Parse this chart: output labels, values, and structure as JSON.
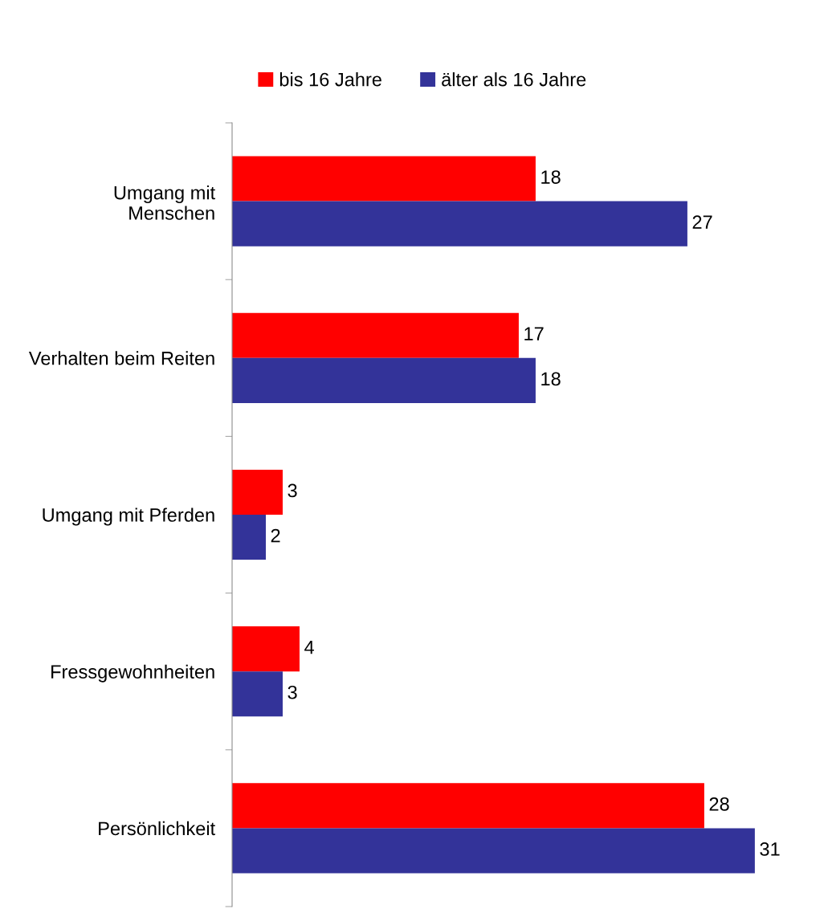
{
  "chart_data": {
    "type": "bar",
    "orientation": "horizontal",
    "categories": [
      "Umgang mit\nMenschen",
      "Verhalten beim Reiten",
      "Umgang mit Pferden",
      "Fressgewohnheiten",
      "Persönlichkeit"
    ],
    "series": [
      {
        "name": "bis 16 Jahre",
        "color": "#ff0000",
        "values": [
          18,
          17,
          3,
          4,
          28
        ]
      },
      {
        "name": "älter als 16 Jahre",
        "color": "#333399",
        "values": [
          27,
          18,
          2,
          3,
          31
        ]
      }
    ],
    "data_labels": true,
    "legend": "top",
    "grid": false,
    "tick_labels": "y"
  }
}
